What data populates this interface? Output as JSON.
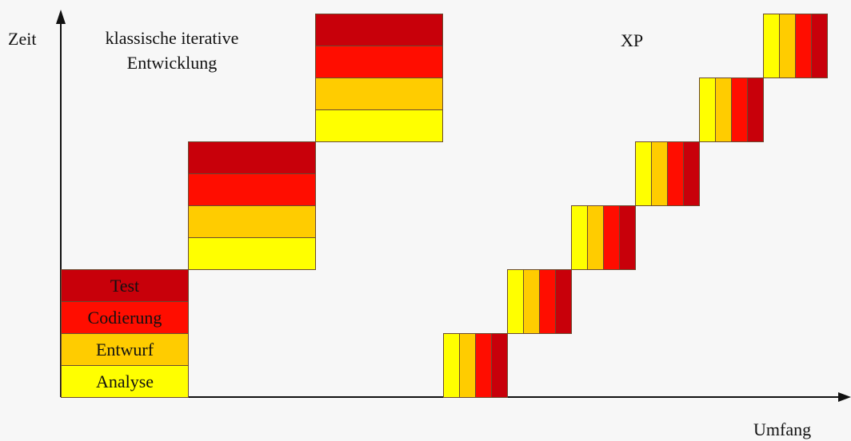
{
  "axes": {
    "y_label": "Zeit",
    "x_label": "Umfang"
  },
  "classic": {
    "title_line1": "klassische iterative",
    "title_line2": "Entwicklung",
    "phases": [
      "Test",
      "Codierung",
      "Entwurf",
      "Analyse"
    ],
    "iterations": 3
  },
  "xp": {
    "title": "XP",
    "iterations": 6,
    "stripe_order": [
      "Analyse",
      "Entwurf",
      "Codierung",
      "Test"
    ]
  },
  "colors": {
    "Test": "#c8000a",
    "Codierung": "#ff0d00",
    "Entwurf": "#ffcc00",
    "Analyse": "#ffff00",
    "border": "#6a4a30",
    "axis": "#111111"
  }
}
